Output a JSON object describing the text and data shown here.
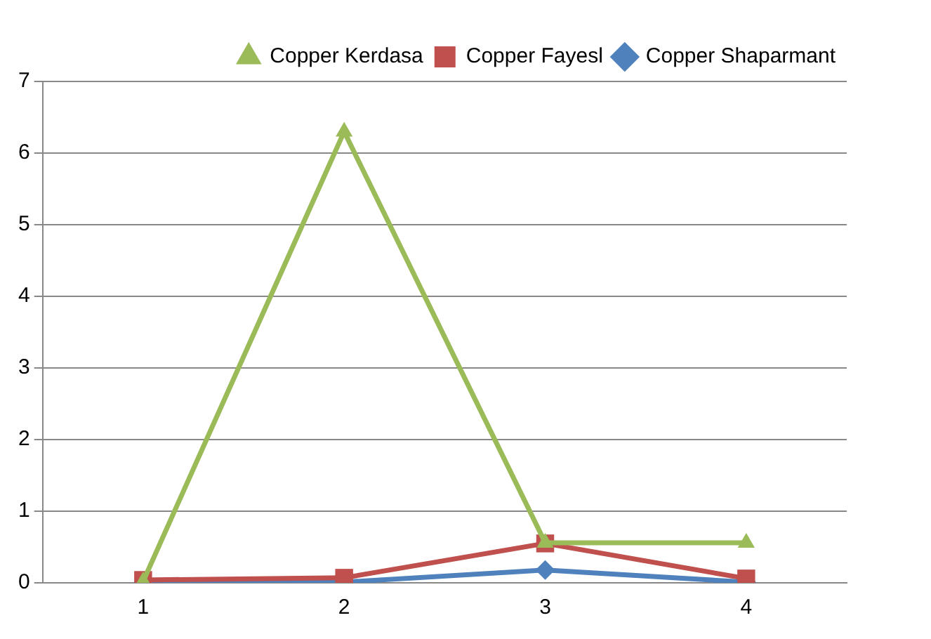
{
  "chart_data": {
    "type": "line",
    "categories": [
      "1",
      "2",
      "3",
      "4"
    ],
    "series": [
      {
        "name": "Copper Kerdasa",
        "color": "#9bbb59",
        "marker": "triangle",
        "values": [
          0.02,
          6.3,
          0.56,
          0.56
        ]
      },
      {
        "name": "Copper Fayesl",
        "color": "#c0504d",
        "marker": "square",
        "values": [
          0.04,
          0.07,
          0.55,
          0.06
        ]
      },
      {
        "name": "Copper Shaparmant",
        "color": "#4f81bd",
        "marker": "diamond",
        "values": [
          0,
          0.01,
          0.18,
          0.01
        ]
      }
    ],
    "ylim": [
      0,
      7
    ],
    "yticks": [
      0,
      1,
      2,
      3,
      4,
      5,
      6,
      7
    ],
    "grid": "y",
    "legend": "top right"
  }
}
